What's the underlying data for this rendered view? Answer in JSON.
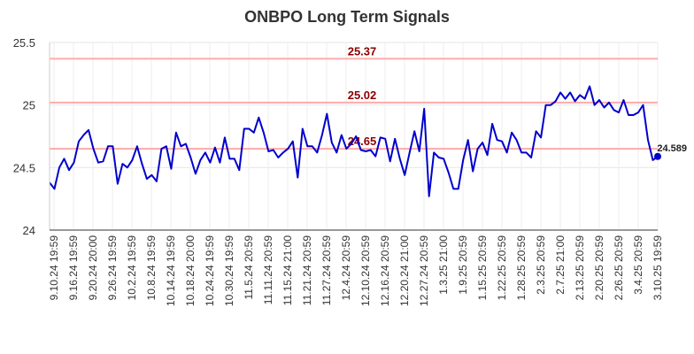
{
  "chart_data": {
    "type": "line",
    "title": "ONBPO Long Term Signals",
    "ylim": [
      24,
      25.5
    ],
    "yticks": [
      "24",
      "24.5",
      "25",
      "25.5"
    ],
    "grid": true,
    "line_color": "#0000cc",
    "level_color": "#ffaaaa",
    "level_label_color": "#8b0000",
    "xtick_labels": [
      "9.10.24 19:59",
      "9.16.24 19:59",
      "9.20.24 20:00",
      "9.26.24 19:59",
      "10.2.24 19:59",
      "10.8.24 19:59",
      "10.14.24 19:59",
      "10.18.24 20:00",
      "10.24.24 19:59",
      "10.30.24 19:59",
      "11.5.24 20:59",
      "11.11.24 20:59",
      "11.15.24 21:00",
      "11.21.24 20:59",
      "11.27.24 20:59",
      "12.4.24 20:59",
      "12.10.24 20:59",
      "12.16.24 20:59",
      "12.20.24 21:00",
      "12.27.24 20:59",
      "1.3.25 21:00",
      "1.9.25 20:59",
      "1.15.25 20:59",
      "1.22.25 20:59",
      "1.28.25 20:59",
      "2.3.25 20:59",
      "2.7.25 21:00",
      "2.13.25 20:59",
      "2.20.25 20:59",
      "2.26.25 20:59",
      "3.4.25 20:59",
      "3.10.25 19:59"
    ],
    "levels": [
      {
        "value": 25.37,
        "label": "25.37"
      },
      {
        "value": 25.02,
        "label": "25.02"
      },
      {
        "value": 24.65,
        "label": "24.65"
      }
    ],
    "last_value_label": "24.589",
    "values": [
      24.38,
      24.33,
      24.5,
      24.57,
      24.48,
      24.54,
      24.71,
      24.76,
      24.8,
      24.65,
      24.54,
      24.55,
      24.67,
      24.67,
      24.37,
      24.53,
      24.5,
      24.56,
      24.67,
      24.53,
      24.41,
      24.44,
      24.39,
      24.65,
      24.67,
      24.49,
      24.78,
      24.67,
      24.69,
      24.58,
      24.45,
      24.56,
      24.62,
      24.54,
      24.66,
      24.54,
      24.74,
      24.57,
      24.57,
      24.48,
      24.81,
      24.81,
      24.78,
      24.9,
      24.78,
      24.63,
      24.64,
      24.58,
      24.62,
      24.65,
      24.71,
      24.42,
      24.81,
      24.67,
      24.67,
      24.62,
      24.76,
      24.93,
      24.7,
      24.62,
      24.76,
      24.65,
      24.69,
      24.75,
      24.64,
      24.63,
      24.64,
      24.59,
      24.74,
      24.73,
      24.55,
      24.73,
      24.57,
      24.44,
      24.62,
      24.79,
      24.63,
      24.97,
      24.27,
      24.62,
      24.58,
      24.57,
      24.46,
      24.33,
      24.33,
      24.56,
      24.72,
      24.47,
      24.65,
      24.7,
      24.6,
      24.85,
      24.72,
      24.71,
      24.62,
      24.78,
      24.72,
      24.62,
      24.62,
      24.58,
      24.79,
      24.74,
      25.0,
      25.0,
      25.03,
      25.1,
      25.05,
      25.1,
      25.03,
      25.08,
      25.05,
      25.15,
      25.0,
      25.04,
      24.98,
      25.02,
      24.96,
      24.94,
      25.04,
      24.92,
      24.92,
      24.94,
      25.0,
      24.72,
      24.56,
      24.589
    ]
  }
}
